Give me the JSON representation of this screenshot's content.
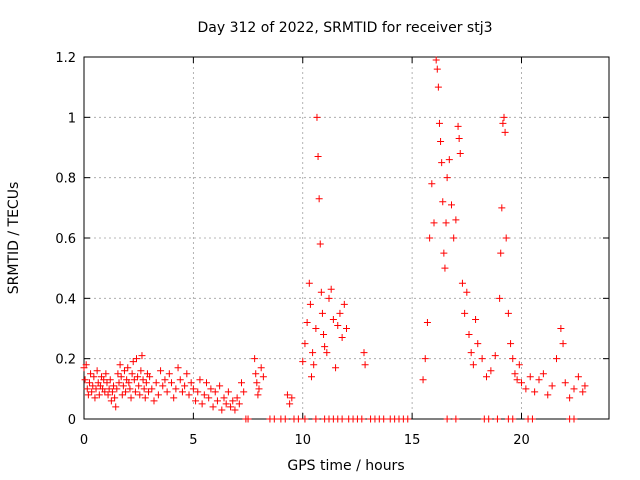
{
  "chart_data": {
    "type": "scatter",
    "title": "Day 312 of 2022, SRMTID for receiver stj3",
    "xlabel": "GPS time / hours",
    "ylabel": "SRMTID / TECUs",
    "xlim": [
      0,
      24
    ],
    "ylim": [
      0,
      1.2
    ],
    "xticks": [
      "0",
      "5",
      "10",
      "15",
      "20"
    ],
    "yticks": [
      "0",
      "0.2",
      "0.4",
      "0.6",
      "0.8",
      "1",
      "1.2"
    ],
    "grid": true,
    "marker": "plus",
    "color": "#ff0000",
    "series": [
      {
        "name": "SRMTID",
        "points": [
          [
            0.0,
            0.17
          ],
          [
            0.05,
            0.13
          ],
          [
            0.1,
            0.18
          ],
          [
            0.15,
            0.1
          ],
          [
            0.2,
            0.08
          ],
          [
            0.25,
            0.12
          ],
          [
            0.3,
            0.15
          ],
          [
            0.35,
            0.09
          ],
          [
            0.4,
            0.11
          ],
          [
            0.45,
            0.14
          ],
          [
            0.5,
            0.07
          ],
          [
            0.55,
            0.1
          ],
          [
            0.6,
            0.16
          ],
          [
            0.65,
            0.12
          ],
          [
            0.7,
            0.08
          ],
          [
            0.75,
            0.11
          ],
          [
            0.8,
            0.14
          ],
          [
            0.85,
            0.1
          ],
          [
            0.9,
            0.13
          ],
          [
            0.95,
            0.09
          ],
          [
            1.0,
            0.15
          ],
          [
            1.05,
            0.12
          ],
          [
            1.1,
            0.08
          ],
          [
            1.15,
            0.1
          ],
          [
            1.2,
            0.13
          ],
          [
            1.25,
            0.06
          ],
          [
            1.3,
            0.09
          ],
          [
            1.35,
            0.11
          ],
          [
            1.4,
            0.07
          ],
          [
            1.45,
            0.04
          ],
          [
            1.5,
            0.1
          ],
          [
            1.55,
            0.15
          ],
          [
            1.6,
            0.12
          ],
          [
            1.65,
            0.18
          ],
          [
            1.7,
            0.14
          ],
          [
            1.75,
            0.08
          ],
          [
            1.8,
            0.11
          ],
          [
            1.85,
            0.16
          ],
          [
            1.9,
            0.09
          ],
          [
            1.95,
            0.13
          ],
          [
            2.0,
            0.17
          ],
          [
            2.05,
            0.12
          ],
          [
            2.1,
            0.1
          ],
          [
            2.15,
            0.07
          ],
          [
            2.2,
            0.15
          ],
          [
            2.25,
            0.19
          ],
          [
            2.3,
            0.13
          ],
          [
            2.35,
            0.09
          ],
          [
            2.4,
            0.2
          ],
          [
            2.45,
            0.14
          ],
          [
            2.5,
            0.11
          ],
          [
            2.55,
            0.08
          ],
          [
            2.6,
            0.16
          ],
          [
            2.65,
            0.21
          ],
          [
            2.7,
            0.13
          ],
          [
            2.75,
            0.1
          ],
          [
            2.8,
            0.07
          ],
          [
            2.85,
            0.12
          ],
          [
            2.9,
            0.15
          ],
          [
            2.95,
            0.09
          ],
          [
            3.0,
            0.14
          ],
          [
            3.1,
            0.1
          ],
          [
            3.2,
            0.06
          ],
          [
            3.3,
            0.12
          ],
          [
            3.4,
            0.08
          ],
          [
            3.5,
            0.16
          ],
          [
            3.6,
            0.11
          ],
          [
            3.7,
            0.13
          ],
          [
            3.8,
            0.09
          ],
          [
            3.9,
            0.15
          ],
          [
            4.0,
            0.12
          ],
          [
            4.1,
            0.07
          ],
          [
            4.2,
            0.1
          ],
          [
            4.3,
            0.17
          ],
          [
            4.4,
            0.13
          ],
          [
            4.5,
            0.09
          ],
          [
            4.6,
            0.11
          ],
          [
            4.7,
            0.15
          ],
          [
            4.8,
            0.08
          ],
          [
            4.9,
            0.12
          ],
          [
            5.0,
            0.1
          ],
          [
            5.1,
            0.06
          ],
          [
            5.2,
            0.09
          ],
          [
            5.3,
            0.13
          ],
          [
            5.4,
            0.05
          ],
          [
            5.5,
            0.08
          ],
          [
            5.6,
            0.12
          ],
          [
            5.7,
            0.07
          ],
          [
            5.8,
            0.1
          ],
          [
            5.9,
            0.04
          ],
          [
            6.0,
            0.09
          ],
          [
            6.1,
            0.06
          ],
          [
            6.2,
            0.11
          ],
          [
            6.3,
            0.03
          ],
          [
            6.4,
            0.07
          ],
          [
            6.5,
            0.05
          ],
          [
            6.6,
            0.09
          ],
          [
            6.7,
            0.04
          ],
          [
            6.8,
            0.06
          ],
          [
            6.9,
            0.03
          ],
          [
            7.0,
            0.07
          ],
          [
            7.1,
            0.05
          ],
          [
            7.2,
            0.12
          ],
          [
            7.3,
            0.09
          ],
          [
            7.8,
            0.2
          ],
          [
            7.85,
            0.15
          ],
          [
            7.9,
            0.12
          ],
          [
            7.95,
            0.08
          ],
          [
            8.0,
            0.1
          ],
          [
            8.1,
            0.17
          ],
          [
            8.2,
            0.14
          ],
          [
            9.3,
            0.08
          ],
          [
            9.4,
            0.05
          ],
          [
            9.5,
            0.07
          ],
          [
            10.0,
            0.19
          ],
          [
            10.1,
            0.25
          ],
          [
            10.2,
            0.32
          ],
          [
            10.3,
            0.45
          ],
          [
            10.35,
            0.38
          ],
          [
            10.4,
            0.14
          ],
          [
            10.45,
            0.22
          ],
          [
            10.5,
            0.18
          ],
          [
            10.6,
            0.3
          ],
          [
            10.65,
            1.0
          ],
          [
            10.7,
            0.87
          ],
          [
            10.75,
            0.73
          ],
          [
            10.8,
            0.58
          ],
          [
            10.85,
            0.42
          ],
          [
            10.9,
            0.35
          ],
          [
            10.95,
            0.28
          ],
          [
            11.0,
            0.24
          ],
          [
            11.1,
            0.22
          ],
          [
            11.2,
            0.4
          ],
          [
            11.3,
            0.43
          ],
          [
            11.4,
            0.33
          ],
          [
            11.5,
            0.17
          ],
          [
            11.6,
            0.31
          ],
          [
            11.7,
            0.35
          ],
          [
            11.8,
            0.27
          ],
          [
            11.9,
            0.38
          ],
          [
            12.0,
            0.3
          ],
          [
            12.8,
            0.22
          ],
          [
            12.85,
            0.18
          ],
          [
            15.5,
            0.13
          ],
          [
            15.6,
            0.2
          ],
          [
            15.7,
            0.32
          ],
          [
            15.8,
            0.6
          ],
          [
            15.9,
            0.78
          ],
          [
            16.0,
            0.65
          ],
          [
            16.1,
            1.19
          ],
          [
            16.15,
            1.16
          ],
          [
            16.2,
            1.1
          ],
          [
            16.25,
            0.98
          ],
          [
            16.3,
            0.92
          ],
          [
            16.35,
            0.85
          ],
          [
            16.4,
            0.72
          ],
          [
            16.45,
            0.55
          ],
          [
            16.5,
            0.5
          ],
          [
            16.55,
            0.65
          ],
          [
            16.6,
            0.8
          ],
          [
            16.7,
            0.86
          ],
          [
            16.8,
            0.71
          ],
          [
            16.9,
            0.6
          ],
          [
            17.0,
            0.66
          ],
          [
            17.1,
            0.97
          ],
          [
            17.15,
            0.93
          ],
          [
            17.2,
            0.88
          ],
          [
            17.3,
            0.45
          ],
          [
            17.4,
            0.35
          ],
          [
            17.5,
            0.42
          ],
          [
            17.6,
            0.28
          ],
          [
            17.7,
            0.22
          ],
          [
            17.8,
            0.18
          ],
          [
            17.9,
            0.33
          ],
          [
            18.0,
            0.25
          ],
          [
            18.2,
            0.2
          ],
          [
            18.4,
            0.14
          ],
          [
            18.6,
            0.16
          ],
          [
            18.8,
            0.21
          ],
          [
            19.0,
            0.4
          ],
          [
            19.05,
            0.55
          ],
          [
            19.1,
            0.7
          ],
          [
            19.15,
            0.98
          ],
          [
            19.2,
            1.0
          ],
          [
            19.25,
            0.95
          ],
          [
            19.3,
            0.6
          ],
          [
            19.4,
            0.35
          ],
          [
            19.5,
            0.25
          ],
          [
            19.6,
            0.2
          ],
          [
            19.7,
            0.15
          ],
          [
            19.8,
            0.13
          ],
          [
            19.9,
            0.18
          ],
          [
            20.0,
            0.12
          ],
          [
            20.2,
            0.1
          ],
          [
            20.4,
            0.14
          ],
          [
            20.6,
            0.09
          ],
          [
            20.8,
            0.13
          ],
          [
            21.0,
            0.15
          ],
          [
            21.2,
            0.08
          ],
          [
            21.4,
            0.11
          ],
          [
            21.6,
            0.2
          ],
          [
            21.8,
            0.3
          ],
          [
            21.9,
            0.25
          ],
          [
            22.0,
            0.12
          ],
          [
            22.2,
            0.07
          ],
          [
            22.4,
            0.1
          ],
          [
            22.6,
            0.14
          ],
          [
            22.8,
            0.09
          ],
          [
            22.9,
            0.11
          ]
        ]
      }
    ],
    "zero_points_x": [
      7.4,
      7.5,
      8.5,
      8.7,
      9.0,
      9.2,
      9.6,
      9.8,
      10.1,
      10.6,
      11.0,
      11.2,
      11.4,
      11.6,
      11.8,
      12.1,
      12.3,
      12.5,
      12.7,
      13.1,
      13.3,
      13.5,
      13.7,
      14.0,
      14.2,
      14.4,
      14.6,
      14.8,
      16.6,
      17.0,
      18.3,
      18.5,
      18.9,
      19.4,
      19.6,
      20.3,
      20.5,
      22.2,
      22.4
    ]
  }
}
